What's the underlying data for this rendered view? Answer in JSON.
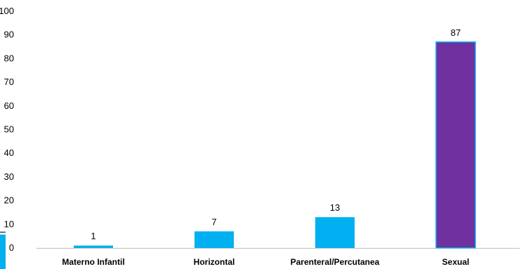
{
  "chart_data": {
    "type": "bar",
    "categories": [
      "Materno Infantil",
      "Horizontal",
      "Parenteral/Percutanea",
      "Sexual"
    ],
    "values": [
      1,
      7,
      13,
      87
    ],
    "data_labels": [
      "1",
      "7",
      "13",
      "87"
    ],
    "title": "",
    "xlabel": "",
    "ylabel": "",
    "ylim": [
      0,
      100
    ],
    "yticks": [
      0,
      10,
      20,
      30,
      40,
      50,
      60,
      70,
      80,
      90,
      100
    ],
    "grid": false,
    "legend": "none",
    "colors": {
      "default_bar": "#00b0f0",
      "highlight_bar": "#7030a0",
      "highlight_border": "#00b0f0",
      "axis": "#bfbfbf"
    },
    "highlight_index": 3
  }
}
